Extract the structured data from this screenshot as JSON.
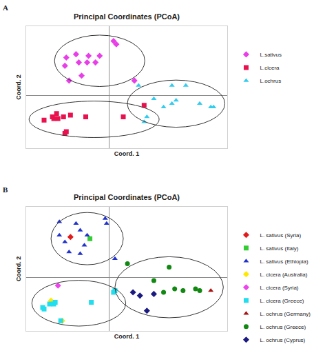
{
  "chart_data": [
    {
      "type": "scatter",
      "label": "A",
      "title": "Principal Coordinates (PCoA)",
      "x_label": "Coord. 1",
      "y_label": "Coord. 2",
      "xlim": [
        -0.6,
        0.85
      ],
      "ylim": [
        -0.32,
        0.42
      ],
      "xticks": [],
      "yticks": [],
      "tick_labels": false,
      "grid": false,
      "legend": "right",
      "series": [
        {
          "name": "L.sativus",
          "color": "#e83ee8",
          "marker": "diamond",
          "x": [
            -0.31,
            -0.24,
            -0.15,
            -0.07,
            -0.22,
            -0.16,
            -0.32,
            -0.1,
            -0.2,
            0.03,
            0.05,
            -0.29,
            0.18
          ],
          "y": [
            0.23,
            0.25,
            0.24,
            0.24,
            0.2,
            0.2,
            0.18,
            0.2,
            0.12,
            0.33,
            0.31,
            0.09,
            0.09
          ]
        },
        {
          "name": "L.cicera",
          "color": "#e8114e",
          "marker": "square",
          "x": [
            -0.47,
            -0.41,
            -0.38,
            -0.37,
            -0.4,
            -0.33,
            -0.28,
            -0.17,
            -0.31,
            -0.32,
            0.1,
            0.25
          ],
          "y": [
            -0.15,
            -0.13,
            -0.11,
            -0.14,
            -0.14,
            -0.13,
            -0.12,
            -0.13,
            -0.22,
            -0.23,
            -0.13,
            -0.06
          ]
        },
        {
          "name": "L.ochrus",
          "color": "#33ccee",
          "marker": "triangle",
          "x": [
            0.21,
            0.45,
            0.55,
            0.32,
            0.48,
            0.45,
            0.65,
            0.75,
            0.39,
            0.27,
            0.25,
            0.73
          ],
          "y": [
            0.06,
            0.06,
            0.06,
            -0.02,
            -0.03,
            -0.05,
            -0.05,
            -0.07,
            -0.07,
            -0.13,
            -0.16,
            -0.07
          ]
        }
      ]
    },
    {
      "type": "scatter",
      "label": "B",
      "title": "Principal Coordinates (PCoA)",
      "x_label": "Coord. 1",
      "y_label": "Coord. 2",
      "xlim": [
        -0.6,
        0.85
      ],
      "ylim": [
        -0.32,
        0.42
      ],
      "xticks": [],
      "yticks": [],
      "tick_labels": false,
      "grid": false,
      "legend": "right",
      "series": [
        {
          "name": "L. sativus (Syria)",
          "color": "#e31a1c",
          "marker": "diamond",
          "x": [
            -0.28
          ],
          "y": [
            0.24
          ]
        },
        {
          "name": "L. sativus (Italy)",
          "color": "#33cc33",
          "marker": "square",
          "x": [
            -0.14
          ],
          "y": [
            0.23
          ]
        },
        {
          "name": "L. sativus (Ethiopia)",
          "color": "#2233cc",
          "marker": "triangle",
          "x": [
            -0.36,
            -0.24,
            -0.21,
            -0.36,
            -0.32,
            -0.16,
            -0.18,
            -0.29,
            -0.21,
            -0.03,
            -0.02,
            0.04
          ],
          "y": [
            0.33,
            0.32,
            0.28,
            0.25,
            0.21,
            0.25,
            0.19,
            0.15,
            0.14,
            0.35,
            0.32,
            0.11
          ]
        },
        {
          "name": "L. cicera (Australia)",
          "color": "#ffe800",
          "marker": "diamond",
          "x": [
            -0.42,
            -0.34
          ],
          "y": [
            -0.14,
            -0.26
          ]
        },
        {
          "name": "L. cicera (Syria)",
          "color": "#ee44ee",
          "marker": "diamond",
          "x": [
            -0.37
          ],
          "y": [
            -0.05
          ]
        },
        {
          "name": "L. cicera (Greece)",
          "color": "#22ddee",
          "marker": "square",
          "x": [
            -0.48,
            -0.47,
            -0.43,
            -0.4,
            -0.39,
            -0.35,
            -0.13,
            0.03,
            0.04
          ],
          "y": [
            -0.18,
            -0.19,
            -0.16,
            -0.16,
            -0.15,
            -0.26,
            -0.15,
            -0.09,
            -0.08
          ]
        },
        {
          "name": "L. ochrus (Germany)",
          "color": "#aa1111",
          "marker": "triangle",
          "x": [
            0.73
          ],
          "y": [
            -0.08
          ]
        },
        {
          "name": "L. ochrus (Greece)",
          "color": "#118811",
          "marker": "circle",
          "x": [
            0.13,
            0.43,
            0.32,
            0.47,
            0.53,
            0.62,
            0.65,
            0.39
          ],
          "y": [
            0.08,
            0.06,
            -0.02,
            -0.07,
            -0.08,
            -0.07,
            -0.08,
            -0.09
          ]
        },
        {
          "name": "L. ochrus (Cyprus)",
          "color": "#1a1a80",
          "marker": "diamond",
          "x": [
            0.17,
            0.22,
            0.32,
            0.27
          ],
          "y": [
            -0.09,
            -0.11,
            -0.1,
            -0.2
          ]
        }
      ]
    }
  ]
}
